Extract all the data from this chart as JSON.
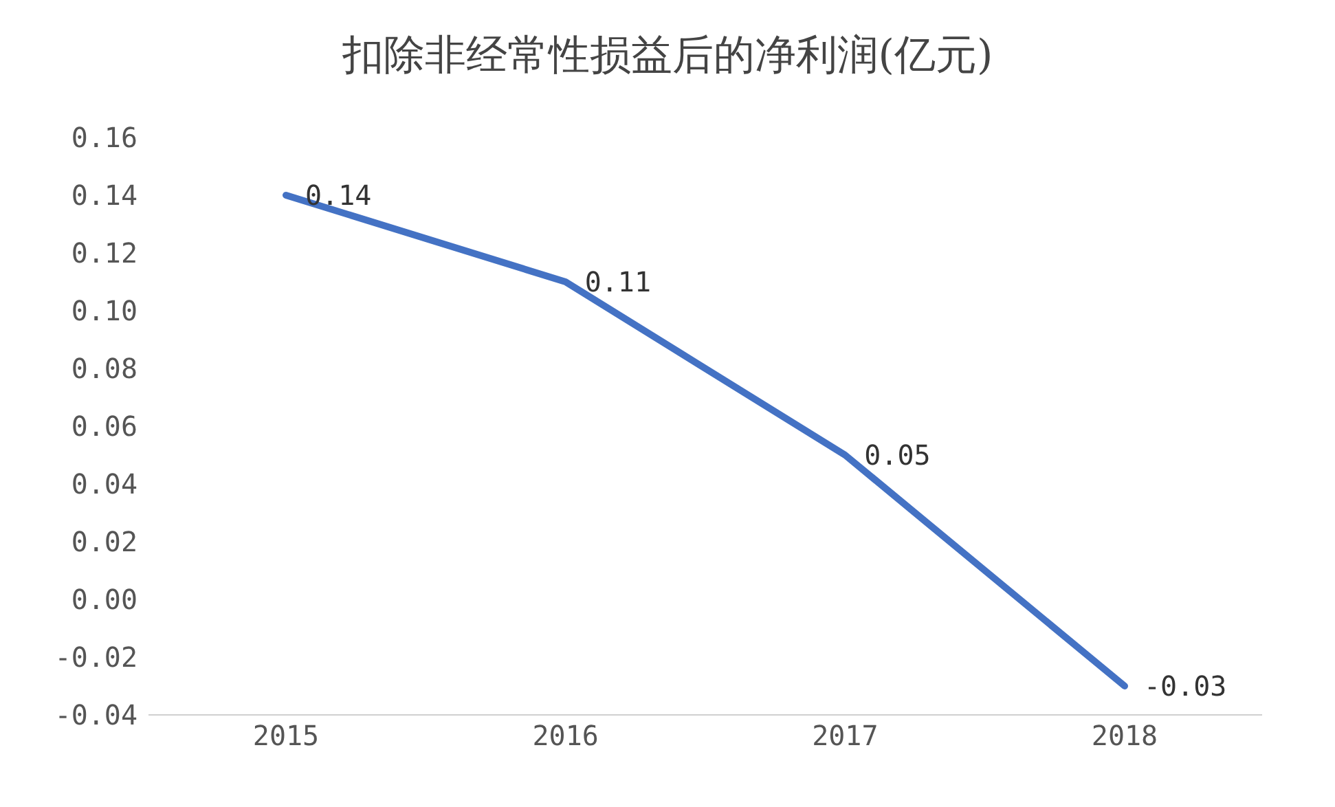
{
  "chart_data": {
    "type": "line",
    "title": "扣除非经常性损益后的净利润(亿元)",
    "categories": [
      "2015",
      "2016",
      "2017",
      "2018"
    ],
    "series": [
      {
        "color": "#4472c4",
        "values": [
          0.14,
          0.11,
          0.05,
          -0.03
        ]
      }
    ],
    "ylim": [
      -0.04,
      0.16
    ],
    "yticks": [
      {
        "value": -0.04,
        "label": "-0.04"
      },
      {
        "value": -0.02,
        "label": "-0.02"
      },
      {
        "value": 0,
        "label": "0.00"
      },
      {
        "value": 0.02,
        "label": "0.02"
      },
      {
        "value": 0.04,
        "label": "0.04"
      },
      {
        "value": 0.06,
        "label": "0.06"
      },
      {
        "value": 0.08,
        "label": "0.08"
      },
      {
        "value": 0.1,
        "label": "0.10"
      },
      {
        "value": 0.12,
        "label": "0.12"
      },
      {
        "value": 0.14,
        "label": "0.14"
      },
      {
        "value": 0.16,
        "label": "0.16"
      }
    ],
    "data_labels": true,
    "grid": false,
    "legend": false,
    "marker": "none",
    "line_style": "solid"
  }
}
